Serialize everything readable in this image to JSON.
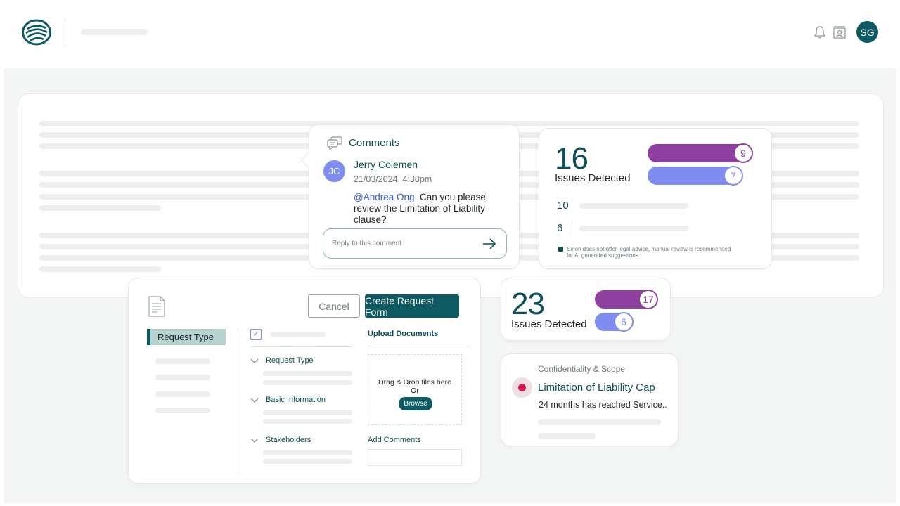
{
  "header": {
    "avatar_initials": "SG",
    "icons": [
      "bell-icon",
      "profile-card-icon"
    ],
    "brand_color": "#0e5a63"
  },
  "comments": {
    "title": "Comments",
    "author_initials": "JC",
    "author": "Jerry Colemen",
    "date": "21/03/2024, 4:30pm",
    "mention": "@Andrea Ong",
    "text": ", Can you please review the Limitation of Liability clause?",
    "reply_placeholder": "Reply to this comment"
  },
  "issues_primary": {
    "count": "16",
    "label": "Issues Detected",
    "bars": [
      {
        "value": "9",
        "color": "#8e3fa0"
      },
      {
        "value": "7",
        "color": "#7f8cf0"
      }
    ],
    "stats": [
      "10",
      "6"
    ],
    "disclaimer": "Sirion does not offer legal advice, manual review is recommended for AI generated suggestions."
  },
  "request_form": {
    "cancel_label": "Cancel",
    "create_label": "Create Request Form",
    "active_nav": "Request Type",
    "sections": [
      "Request Type",
      "Basic Information",
      "Stakeholders"
    ],
    "upload_title": "Upload Documents",
    "dropzone_line1": "Drag & Drop files here",
    "dropzone_line2": "Or",
    "browse_label": "Browse",
    "add_comments_label": "Add Comments"
  },
  "issues_secondary": {
    "count": "23",
    "label": "Issues Detected",
    "bars": [
      {
        "value": "17",
        "color": "#8e3fa0"
      },
      {
        "value": "6",
        "color": "#7f8cf0"
      }
    ]
  },
  "liability": {
    "category": "Confidentiality & Scope",
    "title": "Limitation of Liability Cap",
    "description": "24 months has reached Service..",
    "status_color": "#d6194f"
  }
}
